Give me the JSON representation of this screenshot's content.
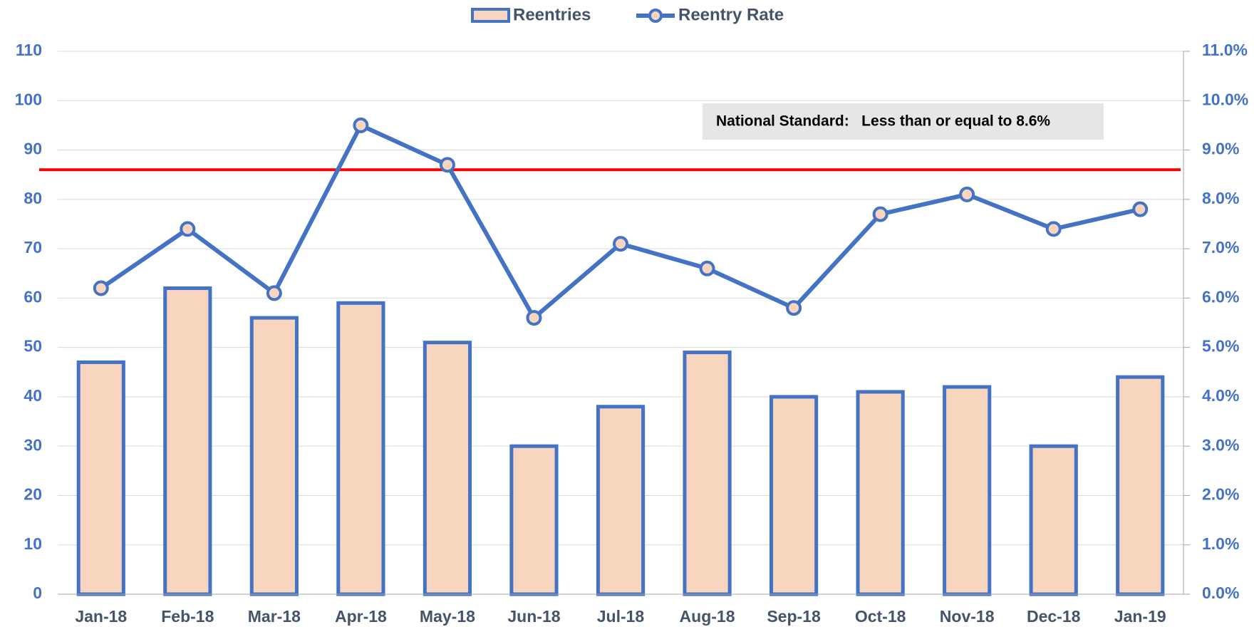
{
  "chart_data": {
    "type": "bar_line",
    "categories": [
      "Jan-18",
      "Feb-18",
      "Mar-18",
      "Apr-18",
      "May-18",
      "Jun-18",
      "Jul-18",
      "Aug-18",
      "Sep-18",
      "Oct-18",
      "Nov-18",
      "Dec-18",
      "Jan-19"
    ],
    "series": [
      {
        "name": "Reentries",
        "type": "bar",
        "color": "#4472c4",
        "fill": "#f8d5bf",
        "values": [
          47,
          62,
          56,
          59,
          51,
          30,
          38,
          49,
          40,
          41,
          42,
          30,
          44
        ]
      },
      {
        "name": "Reentry Rate",
        "type": "line",
        "axis": "y2",
        "color": "#4472c4",
        "marker_fill": "#f8d5bf",
        "values": [
          6.2,
          7.4,
          6.1,
          9.5,
          8.7,
          5.6,
          7.1,
          6.6,
          5.8,
          7.7,
          8.1,
          7.4,
          7.8
        ]
      }
    ],
    "ylim": [
      0,
      110
    ],
    "yticks": [
      0,
      10,
      20,
      30,
      40,
      50,
      60,
      70,
      80,
      90,
      100,
      110
    ],
    "y2lim": [
      0,
      11
    ],
    "y2ticks": [
      {
        "value": 0,
        "label": "0.0%"
      },
      {
        "value": 1,
        "label": "1.0%"
      },
      {
        "value": 2,
        "label": "2.0%"
      },
      {
        "value": 3,
        "label": "3.0%"
      },
      {
        "value": 4,
        "label": "4.0%"
      },
      {
        "value": 5,
        "label": "5.0%"
      },
      {
        "value": 6,
        "label": "6.0%"
      },
      {
        "value": 7,
        "label": "7.0%"
      },
      {
        "value": 8,
        "label": "8.0%"
      },
      {
        "value": 9,
        "label": "9.0%"
      },
      {
        "value": 10,
        "label": "10.0%"
      },
      {
        "value": 11,
        "label": "11.0%"
      }
    ],
    "reference_line": {
      "value": 8.6,
      "axis": "y2",
      "color": "#ff0000"
    },
    "annotation": "National Standard:   Less than or equal to 8.6%",
    "grid": true,
    "legend": "top"
  }
}
